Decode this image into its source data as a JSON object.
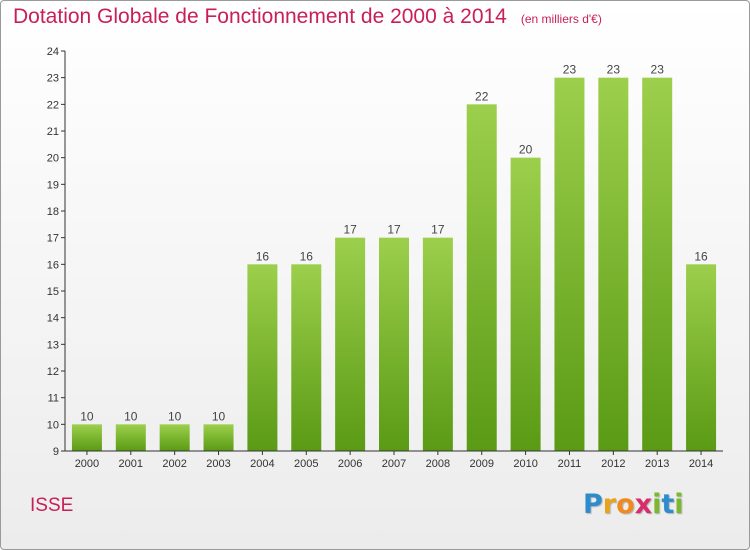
{
  "title": "Dotation Globale de Fonctionnement de 2000 à 2014",
  "subtitle": "(en milliers d'€)",
  "commune": "ISSE",
  "logo": {
    "letters": [
      "P",
      "r",
      "o",
      "x",
      "i",
      "t",
      "i"
    ]
  },
  "colors": {
    "title": "#c81e5a",
    "bar_top": "#9ccf4c",
    "bar_bottom": "#5a9a14",
    "axis": "#333333"
  },
  "chart_data": {
    "type": "bar",
    "title": "Dotation Globale de Fonctionnement de 2000 à 2014",
    "subtitle": "(en milliers d'€)",
    "categories": [
      "2000",
      "2001",
      "2002",
      "2003",
      "2004",
      "2005",
      "2006",
      "2007",
      "2008",
      "2009",
      "2010",
      "2011",
      "2012",
      "2013",
      "2014"
    ],
    "values": [
      10,
      10,
      10,
      10,
      16,
      16,
      17,
      17,
      17,
      22,
      20,
      23,
      23,
      23,
      16
    ],
    "xlabel": "",
    "ylabel": "",
    "ylim": [
      9,
      24
    ],
    "yticks": [
      9,
      10,
      11,
      12,
      13,
      14,
      15,
      16,
      17,
      18,
      19,
      20,
      21,
      22,
      23,
      24
    ],
    "grid": false,
    "data_labels": true
  }
}
